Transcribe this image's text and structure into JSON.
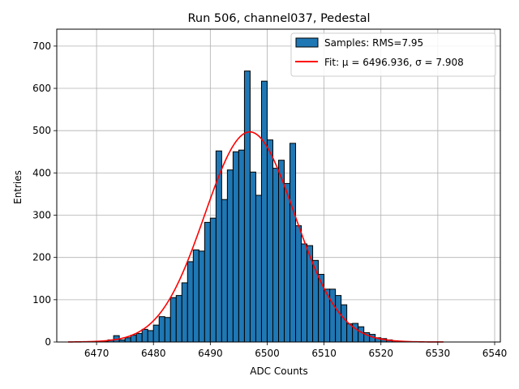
{
  "chart_data": {
    "type": "bar",
    "title": "Run 506, channel037, Pedestal",
    "xlabel": "ADC Counts",
    "ylabel": "Entries",
    "xlim": [
      6463,
      6541
    ],
    "ylim": [
      0,
      740
    ],
    "xticks": [
      6470,
      6480,
      6490,
      6500,
      6510,
      6520,
      6530,
      6540
    ],
    "yticks": [
      0,
      100,
      200,
      300,
      400,
      500,
      600,
      700
    ],
    "grid": true,
    "legend_position": "top-right",
    "series": [
      {
        "name": "Samples: RMS=7.95",
        "kind": "histogram",
        "color": "#1f77b4",
        "edge_color": "#000000",
        "bin_width": 1,
        "bin_start": [
          6471,
          6472,
          6473,
          6474,
          6475,
          6476,
          6477,
          6478,
          6479,
          6480,
          6481,
          6482,
          6483,
          6484,
          6485,
          6486,
          6487,
          6488,
          6489,
          6490,
          6491,
          6492,
          6493,
          6494,
          6495,
          6496,
          6497,
          6498,
          6499,
          6500,
          6501,
          6502,
          6503,
          6504,
          6505,
          6506,
          6507,
          6508,
          6509,
          6510,
          6511,
          6512,
          6513,
          6514,
          6515,
          6516,
          6517,
          6518,
          6519,
          6520,
          6521,
          6522,
          6523
        ],
        "values": [
          2,
          5,
          15,
          5,
          10,
          16,
          20,
          30,
          27,
          40,
          60,
          58,
          105,
          110,
          140,
          190,
          218,
          215,
          283,
          293,
          452,
          337,
          407,
          450,
          454,
          641,
          402,
          347,
          617,
          478,
          411,
          430,
          375,
          470,
          275,
          232,
          228,
          193,
          160,
          125,
          125,
          110,
          88,
          43,
          44,
          36,
          22,
          18,
          10,
          8,
          5,
          3,
          2
        ]
      },
      {
        "name": "Fit: μ = 6496.936, σ = 7.908",
        "kind": "gaussian",
        "color": "#ff0000",
        "mu": 6496.936,
        "sigma": 7.908,
        "amplitude": 497,
        "x_range": [
          6465,
          6531
        ]
      }
    ]
  }
}
